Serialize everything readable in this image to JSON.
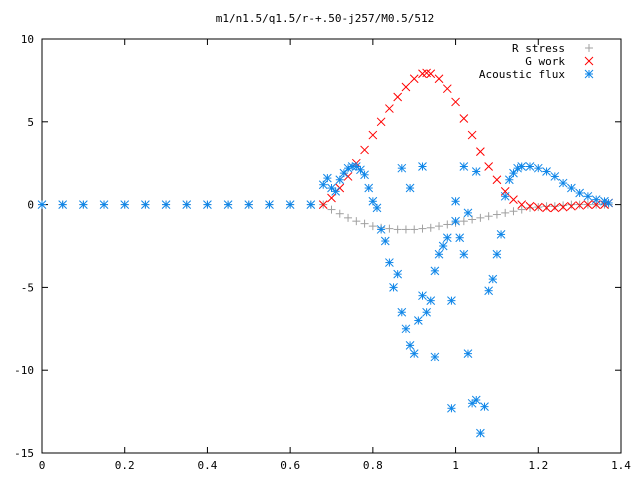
{
  "chart_data": {
    "type": "scatter",
    "title": "m1/n1.5/q1.5/r-+.50-j257/M0.5/512",
    "xlabel": "",
    "ylabel": "",
    "xlim": [
      0,
      1.4
    ],
    "ylim": [
      -15,
      10
    ],
    "xticks": [
      "0",
      "0.2",
      "0.4",
      "0.6",
      "0.8",
      "1",
      "1.2",
      "1.4"
    ],
    "yticks": [
      "10",
      "5",
      "0",
      "-5",
      "-10",
      "-15"
    ],
    "grid": false,
    "legend_position": "top-right",
    "series": [
      {
        "name": "R stress",
        "marker": "plus",
        "color": "#a0a0a0",
        "x": [
          0.0,
          0.05,
          0.1,
          0.15,
          0.2,
          0.25,
          0.3,
          0.35,
          0.4,
          0.45,
          0.5,
          0.55,
          0.6,
          0.65,
          0.68,
          0.7,
          0.72,
          0.74,
          0.76,
          0.78,
          0.8,
          0.82,
          0.84,
          0.86,
          0.88,
          0.9,
          0.92,
          0.94,
          0.96,
          0.98,
          1.0,
          1.02,
          1.04,
          1.06,
          1.08,
          1.1,
          1.12,
          1.14,
          1.16,
          1.18,
          1.2,
          1.22,
          1.24,
          1.26,
          1.28,
          1.3,
          1.32,
          1.34,
          1.36,
          1.37
        ],
        "y": [
          0,
          0,
          0,
          0,
          0,
          0,
          0,
          0,
          0,
          0,
          0,
          0,
          0,
          0,
          0,
          -0.3,
          -0.55,
          -0.8,
          -1.0,
          -1.15,
          -1.3,
          -1.4,
          -1.45,
          -1.5,
          -1.5,
          -1.5,
          -1.45,
          -1.4,
          -1.3,
          -1.2,
          -1.1,
          -1.0,
          -0.9,
          -0.8,
          -0.7,
          -0.6,
          -0.5,
          -0.4,
          -0.3,
          -0.2,
          -0.15,
          -0.1,
          -0.1,
          -0.05,
          0,
          0,
          0,
          0,
          0,
          0
        ]
      },
      {
        "name": "G work",
        "marker": "cross",
        "color": "#ff0000",
        "x": [
          0.68,
          0.7,
          0.72,
          0.74,
          0.76,
          0.78,
          0.8,
          0.82,
          0.84,
          0.86,
          0.88,
          0.9,
          0.92,
          0.93,
          0.94,
          0.96,
          0.98,
          1.0,
          1.02,
          1.04,
          1.06,
          1.08,
          1.1,
          1.12,
          1.14,
          1.16,
          1.18,
          1.2,
          1.22,
          1.24,
          1.26,
          1.28,
          1.3,
          1.32,
          1.34,
          1.36,
          1.37
        ],
        "y": [
          0,
          0.4,
          1.0,
          1.7,
          2.5,
          3.3,
          4.2,
          5.0,
          5.8,
          6.5,
          7.1,
          7.6,
          7.9,
          7.95,
          7.9,
          7.6,
          7.0,
          6.2,
          5.2,
          4.2,
          3.2,
          2.3,
          1.5,
          0.8,
          0.3,
          0,
          -0.1,
          -0.15,
          -0.2,
          -0.2,
          -0.15,
          -0.1,
          -0.05,
          0,
          0,
          0,
          0.1
        ]
      },
      {
        "name": "Acoustic flux",
        "marker": "star",
        "color": "#0f86e8",
        "x": [
          0.0,
          0.05,
          0.1,
          0.15,
          0.2,
          0.25,
          0.3,
          0.35,
          0.4,
          0.45,
          0.5,
          0.55,
          0.6,
          0.65,
          0.68,
          0.69,
          0.7,
          0.71,
          0.72,
          0.73,
          0.74,
          0.75,
          0.76,
          0.77,
          0.78,
          0.79,
          0.8,
          0.81,
          0.82,
          0.83,
          0.84,
          0.85,
          0.86,
          0.87,
          0.88,
          0.89,
          0.9,
          0.91,
          0.92,
          0.93,
          0.94,
          0.95,
          0.96,
          0.97,
          0.98,
          0.99,
          1.0,
          1.01,
          1.02,
          1.03,
          1.04,
          1.05,
          1.06,
          1.07,
          1.08,
          1.09,
          1.1,
          1.11,
          1.12,
          1.13,
          1.14,
          1.15,
          1.16,
          1.18,
          1.2,
          1.22,
          1.24,
          1.26,
          1.28,
          1.3,
          1.32,
          1.34,
          1.36,
          1.37,
          0.87,
          0.92,
          1.02,
          1.05,
          1.0,
          1.03,
          0.99,
          0.95,
          0.89
        ],
        "y": [
          0,
          0,
          0,
          0,
          0,
          0,
          0,
          0,
          0,
          0,
          0,
          0,
          0,
          0,
          1.2,
          1.6,
          1.0,
          0.8,
          1.5,
          1.9,
          2.2,
          2.3,
          2.3,
          2.1,
          1.8,
          1.0,
          0.2,
          -0.2,
          -1.5,
          -2.2,
          -3.5,
          -5.0,
          -4.2,
          -6.5,
          -7.5,
          -8.5,
          -9.0,
          -7.0,
          -5.5,
          -6.5,
          -5.8,
          -4.0,
          -3.0,
          -2.5,
          -2.0,
          -5.8,
          -1.0,
          -2.0,
          -3.0,
          -9.0,
          -12.0,
          -11.8,
          -13.8,
          -12.2,
          -5.2,
          -4.5,
          -3.0,
          -1.8,
          0.5,
          1.5,
          1.9,
          2.2,
          2.3,
          2.3,
          2.2,
          2.0,
          1.7,
          1.3,
          1.0,
          0.7,
          0.5,
          0.3,
          0.2,
          0.1,
          2.2,
          2.3,
          2.3,
          2.0,
          0.2,
          -0.5,
          -12.3,
          -9.2,
          1.0
        ]
      }
    ]
  }
}
